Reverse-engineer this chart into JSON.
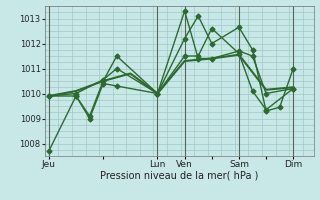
{
  "xlabel": "Pression niveau de la mer( hPa )",
  "background_color": "#c8e8e8",
  "grid_color": "#a0c8c8",
  "line_color": "#2d6a2d",
  "vline_color": "#556655",
  "ylim": [
    1007.5,
    1013.5
  ],
  "xlim": [
    -0.3,
    19.5
  ],
  "yticks": [
    1008,
    1009,
    1010,
    1011,
    1012,
    1013
  ],
  "xtick_labels": [
    "Jeu",
    "",
    "Lun",
    "Ven",
    "",
    "Sam",
    "",
    "Dim"
  ],
  "xtick_positions": [
    0,
    4,
    8,
    10,
    12,
    14,
    16,
    18
  ],
  "vline_positions": [
    0,
    8,
    10,
    14,
    18
  ],
  "series": [
    {
      "x": [
        0,
        2,
        3,
        4,
        5,
        8,
        10,
        11,
        12,
        14,
        15,
        16,
        18
      ],
      "y": [
        1007.7,
        1009.9,
        1009.0,
        1010.4,
        1010.3,
        1010.0,
        1013.3,
        1011.4,
        1011.4,
        1011.7,
        1011.5,
        1010.0,
        1010.2
      ],
      "marker": "D",
      "linewidth": 1.0,
      "markersize": 2.5
    },
    {
      "x": [
        0,
        2,
        3,
        4,
        5,
        8,
        10,
        11,
        12,
        14,
        15,
        16,
        18
      ],
      "y": [
        1009.9,
        1009.9,
        1009.1,
        1010.5,
        1011.5,
        1010.0,
        1011.5,
        1011.5,
        1012.6,
        1011.6,
        1010.1,
        1009.35,
        1010.2
      ],
      "marker": "D",
      "linewidth": 1.0,
      "markersize": 2.5
    },
    {
      "x": [
        0,
        2,
        4,
        6,
        8,
        10,
        12,
        14,
        16,
        18
      ],
      "y": [
        1009.9,
        1010.1,
        1010.5,
        1010.8,
        1010.0,
        1011.3,
        1011.4,
        1011.55,
        1010.15,
        1010.25
      ],
      "marker": null,
      "linewidth": 1.5,
      "markersize": 0
    },
    {
      "x": [
        0,
        2,
        4,
        5,
        8,
        10,
        11,
        12,
        14,
        15,
        16,
        17,
        18
      ],
      "y": [
        1009.9,
        1010.0,
        1010.55,
        1011.0,
        1010.0,
        1012.2,
        1013.1,
        1012.0,
        1012.65,
        1011.75,
        1009.3,
        1009.45,
        1011.0
      ],
      "marker": "D",
      "linewidth": 1.0,
      "markersize": 2.5
    }
  ]
}
